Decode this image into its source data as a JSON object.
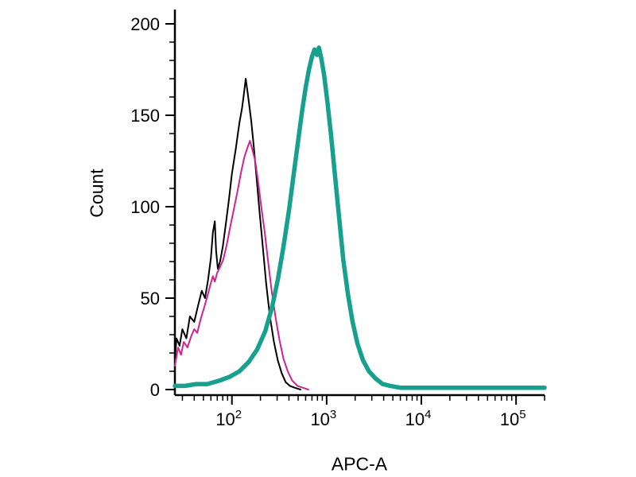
{
  "chart_data": {
    "type": "line",
    "chart_kind": "flow-cytometry-histogram",
    "title": "",
    "xlabel": "APC-A",
    "ylabel": "Count",
    "x_scale": "log",
    "x_range": [
      25,
      200000
    ],
    "y_range": [
      0,
      205
    ],
    "y_ticks": [
      0,
      50,
      100,
      150,
      200
    ],
    "y_minor_tick_step": 10,
    "x_major_ticks": [
      100,
      1000,
      10000,
      100000
    ],
    "grid": false,
    "legend": false,
    "axis_color": "#000000",
    "series": [
      {
        "name": "black-thin-curve",
        "color": "#000000",
        "width": 2,
        "points": [
          [
            25,
            16
          ],
          [
            26,
            28
          ],
          [
            28,
            24
          ],
          [
            30,
            33
          ],
          [
            33,
            28
          ],
          [
            36,
            40
          ],
          [
            40,
            37
          ],
          [
            44,
            46
          ],
          [
            48,
            54
          ],
          [
            52,
            50
          ],
          [
            56,
            60
          ],
          [
            60,
            72
          ],
          [
            63,
            86
          ],
          [
            66,
            92
          ],
          [
            68,
            76
          ],
          [
            71,
            66
          ],
          [
            75,
            70
          ],
          [
            80,
            78
          ],
          [
            86,
            90
          ],
          [
            93,
            104
          ],
          [
            100,
            118
          ],
          [
            110,
            132
          ],
          [
            120,
            146
          ],
          [
            128,
            154
          ],
          [
            134,
            162
          ],
          [
            140,
            170
          ],
          [
            146,
            163
          ],
          [
            152,
            156
          ],
          [
            160,
            147
          ],
          [
            170,
            133
          ],
          [
            182,
            116
          ],
          [
            196,
            97
          ],
          [
            212,
            78
          ],
          [
            230,
            58
          ],
          [
            252,
            40
          ],
          [
            278,
            26
          ],
          [
            305,
            16
          ],
          [
            335,
            9
          ],
          [
            370,
            4
          ],
          [
            410,
            2
          ],
          [
            460,
            1
          ],
          [
            530,
            0
          ]
        ]
      },
      {
        "name": "magenta-thin-curve",
        "color": "#cc2490",
        "width": 2,
        "points": [
          [
            25,
            13
          ],
          [
            27,
            23
          ],
          [
            29,
            19
          ],
          [
            31,
            26
          ],
          [
            34,
            23
          ],
          [
            37,
            29
          ],
          [
            40,
            33
          ],
          [
            43,
            31
          ],
          [
            47,
            39
          ],
          [
            51,
            45
          ],
          [
            55,
            51
          ],
          [
            59,
            57
          ],
          [
            63,
            62
          ],
          [
            66,
            59
          ],
          [
            70,
            64
          ],
          [
            75,
            67
          ],
          [
            81,
            71
          ],
          [
            88,
            79
          ],
          [
            96,
            89
          ],
          [
            105,
            99
          ],
          [
            115,
            109
          ],
          [
            125,
            119
          ],
          [
            135,
            127
          ],
          [
            145,
            132
          ],
          [
            155,
            136
          ],
          [
            165,
            131
          ],
          [
            176,
            125
          ],
          [
            190,
            113
          ],
          [
            205,
            99
          ],
          [
            222,
            86
          ],
          [
            242,
            69
          ],
          [
            264,
            53
          ],
          [
            290,
            39
          ],
          [
            318,
            27
          ],
          [
            350,
            17
          ],
          [
            388,
            10
          ],
          [
            432,
            5
          ],
          [
            492,
            2
          ],
          [
            560,
            1
          ],
          [
            640,
            0
          ]
        ]
      },
      {
        "name": "teal-thick-curve",
        "color": "#17a08e",
        "width": 5.5,
        "points": [
          [
            25,
            2
          ],
          [
            32,
            2
          ],
          [
            42,
            3
          ],
          [
            55,
            3
          ],
          [
            75,
            5
          ],
          [
            95,
            7
          ],
          [
            120,
            10
          ],
          [
            150,
            15
          ],
          [
            185,
            22
          ],
          [
            225,
            32
          ],
          [
            265,
            45
          ],
          [
            305,
            60
          ],
          [
            350,
            78
          ],
          [
            400,
            98
          ],
          [
            450,
            118
          ],
          [
            500,
            136
          ],
          [
            550,
            152
          ],
          [
            600,
            165
          ],
          [
            650,
            175
          ],
          [
            700,
            182
          ],
          [
            745,
            186
          ],
          [
            790,
            183
          ],
          [
            830,
            187
          ],
          [
            880,
            181
          ],
          [
            940,
            172
          ],
          [
            1020,
            157
          ],
          [
            1120,
            138
          ],
          [
            1230,
            116
          ],
          [
            1360,
            93
          ],
          [
            1500,
            71
          ],
          [
            1680,
            52
          ],
          [
            1880,
            37
          ],
          [
            2120,
            25
          ],
          [
            2420,
            16
          ],
          [
            2800,
            10
          ],
          [
            3300,
            6
          ],
          [
            3900,
            3
          ],
          [
            4700,
            2
          ],
          [
            6000,
            1
          ],
          [
            8000,
            1
          ],
          [
            12000,
            1
          ],
          [
            20000,
            1
          ],
          [
            40000,
            1
          ],
          [
            80000,
            1
          ],
          [
            150000,
            1
          ],
          [
            200000,
            1
          ]
        ]
      }
    ]
  }
}
